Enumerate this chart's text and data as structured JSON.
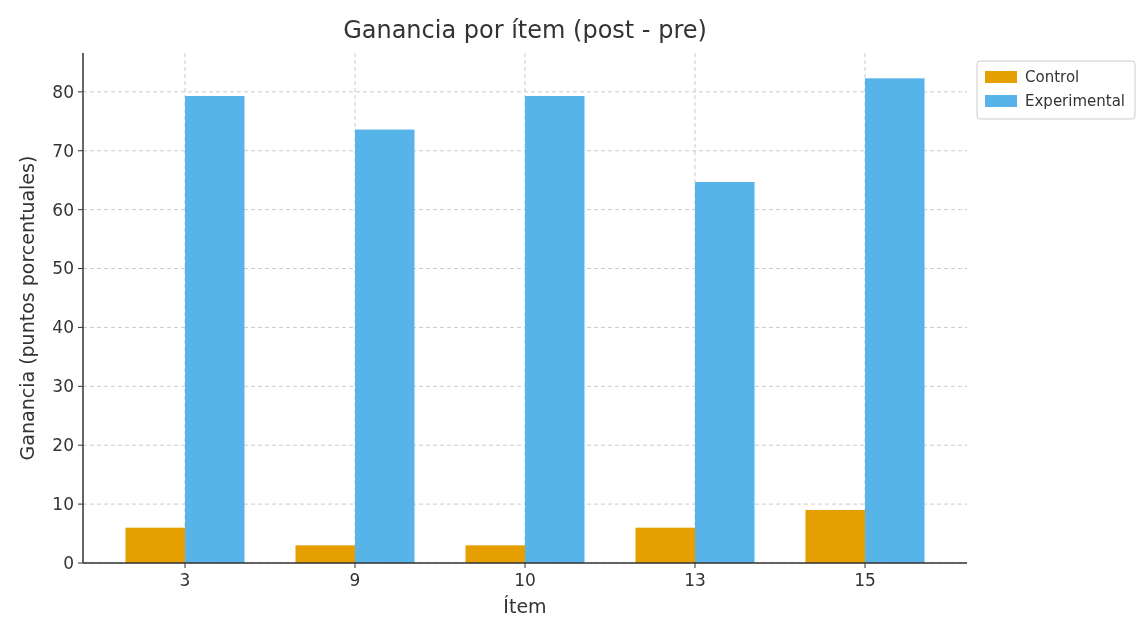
{
  "chart_data": {
    "type": "bar",
    "title": "Ganancia por ítem (post - pre)",
    "xlabel": "Ítem",
    "ylabel": "Ganancia (puntos porcentuales)",
    "categories": [
      "3",
      "9",
      "10",
      "13",
      "15"
    ],
    "series": [
      {
        "name": "Control",
        "color": "#e69f00",
        "values": [
          6,
          3,
          3,
          6,
          9
        ]
      },
      {
        "name": "Experimental",
        "color": "#56b4e9",
        "values": [
          79.3,
          73.6,
          79.3,
          64.7,
          82.3
        ]
      }
    ],
    "ylim": [
      0,
      86.6
    ],
    "yticks": [
      0,
      10,
      20,
      30,
      40,
      50,
      60,
      70,
      80
    ],
    "grid": true,
    "legend": "top right"
  }
}
